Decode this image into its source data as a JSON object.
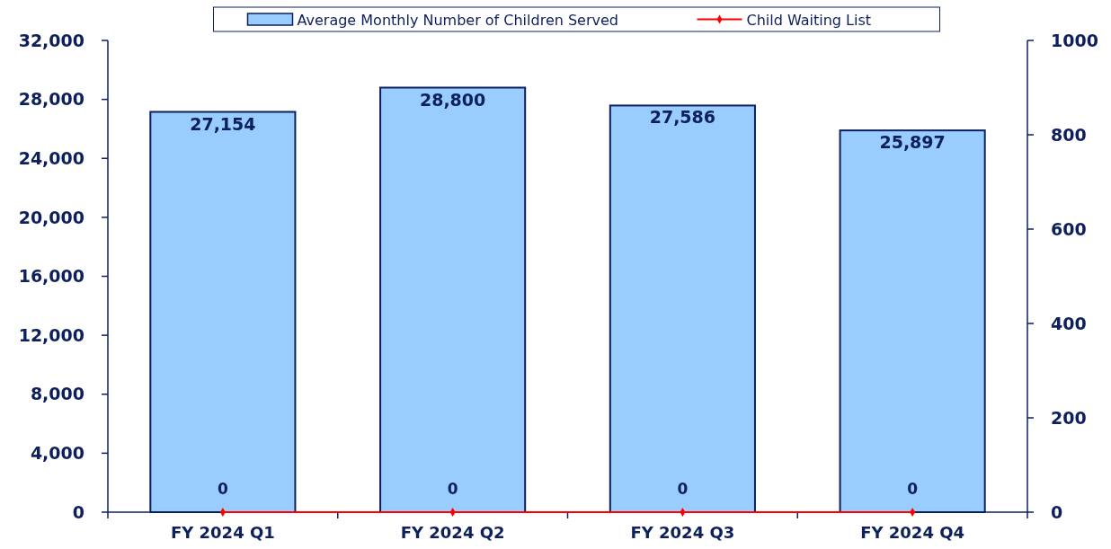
{
  "chart_data": {
    "type": "bar",
    "categories": [
      "FY 2024 Q1",
      "FY 2024 Q2",
      "FY 2024 Q3",
      "FY 2024 Q4"
    ],
    "series": [
      {
        "name": "Average Monthly Number of Children Served",
        "color": "#99ccff",
        "values": [
          27154,
          28800,
          27586,
          25897
        ],
        "value_labels": [
          "27,154",
          "28,800",
          "27,586",
          "25,897"
        ]
      },
      {
        "name": "Child Waiting List",
        "type": "line",
        "axis": "y2",
        "color": "#ff0000",
        "values": [
          0,
          0,
          0,
          0
        ],
        "value_labels": [
          "0",
          "0",
          "0",
          "0"
        ]
      }
    ],
    "ylim": [
      0,
      32000
    ],
    "yticks": [
      {
        "value": 0,
        "label": "0"
      },
      {
        "value": 4000,
        "label": "4,000"
      },
      {
        "value": 8000,
        "label": "8,000"
      },
      {
        "value": 12000,
        "label": "12,000"
      },
      {
        "value": 16000,
        "label": "16,000"
      },
      {
        "value": 20000,
        "label": "20,000"
      },
      {
        "value": 24000,
        "label": "24,000"
      },
      {
        "value": 28000,
        "label": "28,000"
      },
      {
        "value": 32000,
        "label": "32,000"
      }
    ],
    "y2lim": [
      0,
      1000
    ],
    "y2ticks": [
      0,
      200,
      400,
      600,
      800,
      1000
    ],
    "legend": "top",
    "marker": "diamond",
    "grid": false
  }
}
